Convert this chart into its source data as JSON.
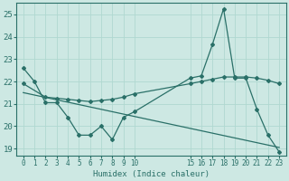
{
  "xlabel": "Humidex (Indice chaleur)",
  "ylabel": "",
  "bg_color": "#cde8e3",
  "grid_color": "#b0d8d0",
  "line_color": "#2a7068",
  "xlim_left": -0.6,
  "xlim_right": 23.6,
  "ylim_bottom": 18.7,
  "ylim_top": 25.5,
  "yticks": [
    19,
    20,
    21,
    22,
    23,
    24,
    25
  ],
  "xtick_positions": [
    0,
    1,
    2,
    3,
    4,
    5,
    6,
    7,
    8,
    9,
    10,
    15,
    16,
    17,
    18,
    19,
    20,
    21,
    22,
    23
  ],
  "xtick_labels": [
    "0",
    "1",
    "2",
    "3",
    "4",
    "5",
    "6",
    "7",
    "8",
    "9",
    "10",
    "15",
    "16",
    "17",
    "18",
    "19",
    "20",
    "21",
    "22",
    "23"
  ],
  "line1_x": [
    0,
    1,
    2,
    3,
    4,
    5,
    6,
    7,
    8,
    9,
    10,
    15,
    16,
    17,
    18,
    19,
    20,
    21,
    22,
    23
  ],
  "line1_y": [
    22.6,
    22.0,
    21.05,
    21.05,
    20.4,
    19.6,
    19.6,
    20.0,
    19.4,
    20.4,
    20.65,
    22.15,
    22.25,
    23.65,
    25.25,
    22.15,
    22.15,
    20.75,
    19.6,
    18.85
  ],
  "line2_x": [
    0,
    2,
    3,
    4,
    5,
    6,
    7,
    8,
    9,
    10,
    15,
    16,
    17,
    18,
    19,
    20,
    21,
    22,
    23
  ],
  "line2_y": [
    21.9,
    21.3,
    21.25,
    21.2,
    21.15,
    21.1,
    21.15,
    21.2,
    21.3,
    21.45,
    21.9,
    22.0,
    22.1,
    22.2,
    22.2,
    22.2,
    22.15,
    22.05,
    21.9
  ],
  "line3_x": [
    0,
    23
  ],
  "line3_y": [
    21.5,
    19.05
  ]
}
